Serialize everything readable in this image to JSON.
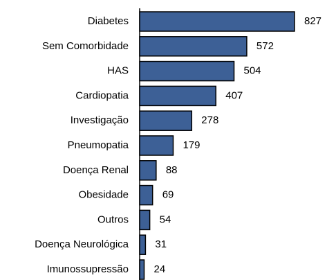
{
  "chart_data": {
    "type": "barh",
    "categories": [
      "Diabetes",
      "Sem Comorbidade",
      "HAS",
      "Cardiopatia",
      "Investigação",
      "Pneumopatia",
      "Doença Renal",
      "Obesidade",
      "Outros",
      "Doença Neurológica",
      "Imunossupressão"
    ],
    "values": [
      827,
      572,
      504,
      407,
      278,
      179,
      88,
      69,
      54,
      31,
      24
    ],
    "color": "#3d6096"
  }
}
